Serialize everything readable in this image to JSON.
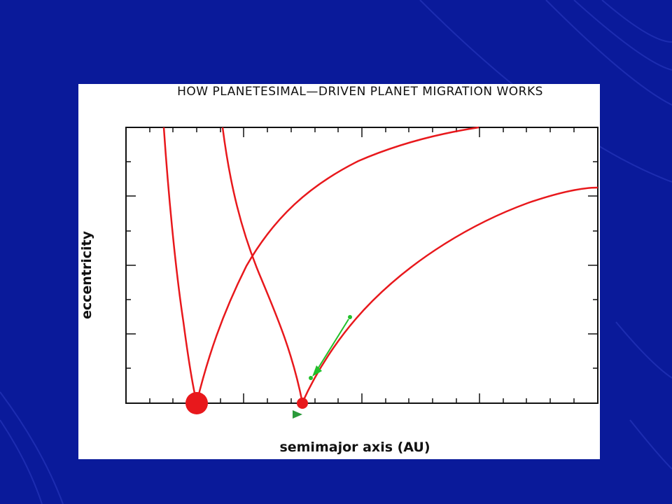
{
  "slide": {
    "title": "HOW PLANETESIMAL—DRIVEN PLANET MIGRATION WORKS"
  },
  "axes": {
    "xlabel": "semimajor axis (AU)",
    "ylabel": "eccentricity"
  },
  "diagram": {
    "curves": [
      "inner-planet-perihelion-curve",
      "inner-planet-aphelion-curve",
      "outer-planet-perihelion-curve",
      "outer-planet-aphelion-curve"
    ],
    "planets": [
      "large-planet",
      "small-planet"
    ],
    "arrows": [
      "planetesimal-path-arrow",
      "migration-arrow"
    ]
  },
  "colors": {
    "background": "#0a1a9a",
    "curve": "#e8181c",
    "arrow": "#22c02a",
    "migration_arrow": "#2a9a3a"
  }
}
